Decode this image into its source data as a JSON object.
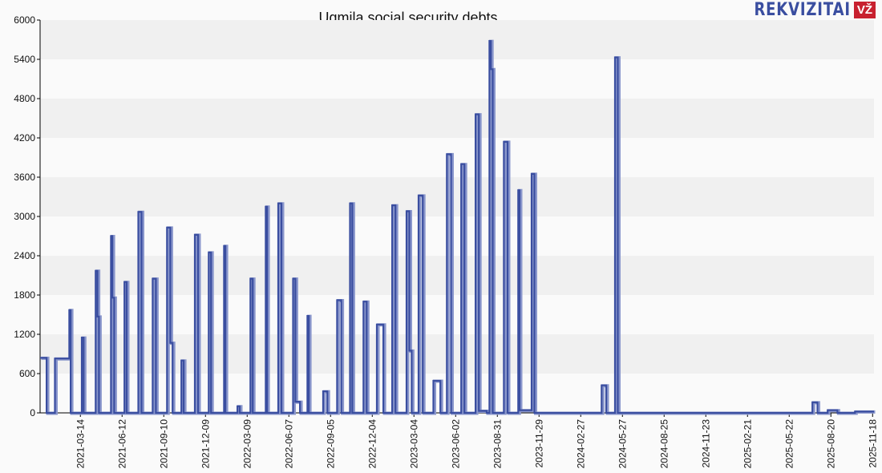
{
  "logo": {
    "text": "REKVIZITAI",
    "badge": "VŽ"
  },
  "chart_data": {
    "type": "line",
    "title": "Ugmila social security debts",
    "xlabel": "",
    "ylabel": "",
    "x_unit": "days since 2021-03-14",
    "xlim": [
      -87,
      1713
    ],
    "ylim": [
      0,
      6000
    ],
    "yticks": [
      0,
      600,
      1200,
      1800,
      2400,
      3000,
      3600,
      4200,
      4800,
      5400,
      6000
    ],
    "xticks": [
      {
        "day": 0,
        "label": "2021-03-14"
      },
      {
        "day": 90,
        "label": "2021-06-12"
      },
      {
        "day": 180,
        "label": "2021-09-10"
      },
      {
        "day": 270,
        "label": "2021-12-09"
      },
      {
        "day": 360,
        "label": "2022-03-09"
      },
      {
        "day": 450,
        "label": "2022-06-07"
      },
      {
        "day": 540,
        "label": "2022-09-05"
      },
      {
        "day": 630,
        "label": "2022-12-04"
      },
      {
        "day": 720,
        "label": "2023-03-04"
      },
      {
        "day": 810,
        "label": "2023-06-02"
      },
      {
        "day": 900,
        "label": "2023-08-31"
      },
      {
        "day": 990,
        "label": "2023-11-29"
      },
      {
        "day": 1080,
        "label": "2024-02-27"
      },
      {
        "day": 1170,
        "label": "2024-05-27"
      },
      {
        "day": 1260,
        "label": "2024-08-25"
      },
      {
        "day": 1350,
        "label": "2024-11-23"
      },
      {
        "day": 1440,
        "label": "2025-02-21"
      },
      {
        "day": 1530,
        "label": "2025-05-22"
      },
      {
        "day": 1620,
        "label": "2025-08-20"
      },
      {
        "day": 1710,
        "label": "2025-11-18"
      }
    ],
    "grid": "horizontal bands",
    "series": [
      {
        "name": "Social security debt",
        "color": "#3a4ea0",
        "segments": [
          [
            -87,
            -73,
            840
          ],
          [
            -55,
            -24,
            830
          ],
          [
            -24,
            -21,
            1570
          ],
          [
            3,
            7,
            1150
          ],
          [
            33,
            37,
            2170
          ],
          [
            37,
            40,
            1470
          ],
          [
            66,
            69,
            2700
          ],
          [
            69,
            73,
            1760
          ],
          [
            95,
            100,
            2000
          ],
          [
            125,
            132,
            3070
          ],
          [
            156,
            163,
            2050
          ],
          [
            187,
            194,
            2830
          ],
          [
            194,
            199,
            1070
          ],
          [
            218,
            223,
            800
          ],
          [
            247,
            254,
            2720
          ],
          [
            277,
            282,
            2450
          ],
          [
            310,
            313,
            2550
          ],
          [
            339,
            344,
            100
          ],
          [
            367,
            372,
            2050
          ],
          [
            400,
            403,
            3150
          ],
          [
            427,
            434,
            3200
          ],
          [
            459,
            464,
            2050
          ],
          [
            464,
            474,
            170
          ],
          [
            490,
            493,
            1480
          ],
          [
            524,
            533,
            330
          ],
          [
            554,
            563,
            1720
          ],
          [
            582,
            587,
            3200
          ],
          [
            611,
            618,
            1700
          ],
          [
            640,
            654,
            1350
          ],
          [
            673,
            680,
            3170
          ],
          [
            704,
            710,
            3080
          ],
          [
            710,
            715,
            950
          ],
          [
            730,
            739,
            3320
          ],
          [
            762,
            777,
            490
          ],
          [
            791,
            800,
            3950
          ],
          [
            822,
            829,
            3800
          ],
          [
            853,
            860,
            4560
          ],
          [
            860,
            877,
            30
          ],
          [
            883,
            886,
            5680
          ],
          [
            886,
            890,
            5250
          ],
          [
            914,
            922,
            4140
          ],
          [
            945,
            948,
            3400
          ],
          [
            948,
            974,
            40
          ],
          [
            974,
            980,
            3650
          ],
          [
            1125,
            1135,
            420
          ],
          [
            1154,
            1160,
            5430
          ],
          [
            1580,
            1591,
            160
          ],
          [
            1613,
            1634,
            40
          ],
          [
            1672,
            1713,
            20
          ]
        ]
      }
    ]
  }
}
